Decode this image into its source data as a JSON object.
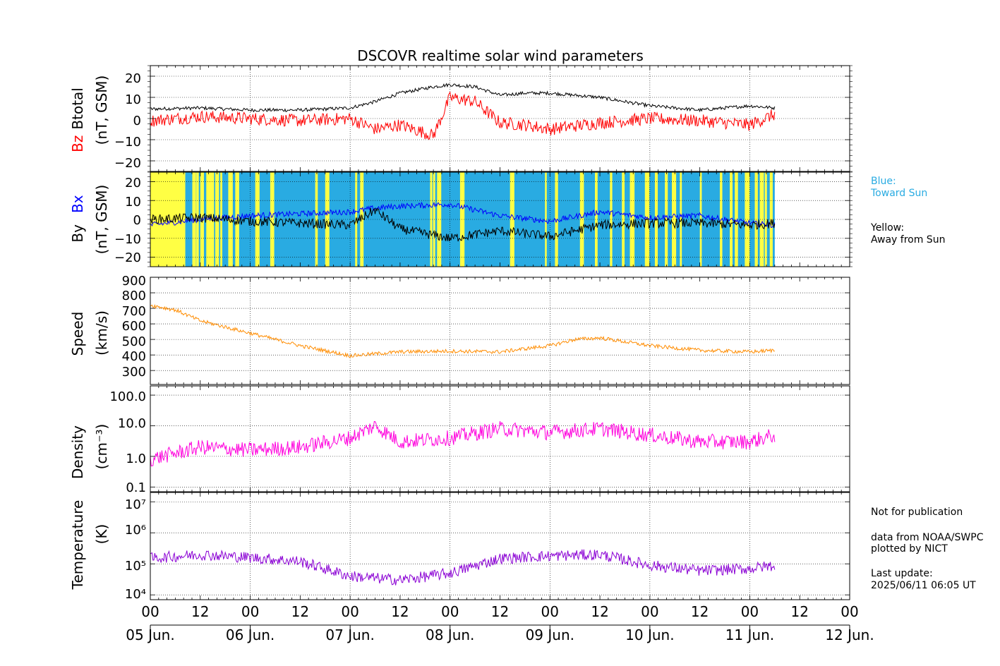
{
  "figure": {
    "title": "DSCOVR realtime solar wind parameters"
  },
  "panels": {
    "mag_total": {
      "label_btotal": "Btotal",
      "label_bz": "Bz",
      "unit": "(nT, GSM)",
      "ticks": [
        "20",
        "10",
        "0",
        "−10",
        "−20"
      ],
      "colors": {
        "btotal": "#000000",
        "bz": "#ff0000"
      }
    },
    "mag_xy": {
      "label_by": "By",
      "label_bx": "Bx",
      "unit": "(nT, GSM)",
      "ticks": [
        "20",
        "10",
        "0",
        "−10",
        "−20"
      ],
      "colors": {
        "by": "#000000",
        "bx": "#0000ff",
        "toward": "#29abe2",
        "away": "#ffff44"
      }
    },
    "speed": {
      "label": "Speed",
      "unit": "(km/s)",
      "ticks": [
        "900",
        "800",
        "700",
        "600",
        "500",
        "400",
        "300"
      ],
      "color": "#ff8c00"
    },
    "density": {
      "label": "Density",
      "unit": "(cm⁻³)",
      "ticks": [
        "100.0",
        "10.0",
        "1.0",
        "0.1"
      ],
      "color": "#ff00dd"
    },
    "temperature": {
      "label": "Temperature",
      "unit": "(K)",
      "ticks": [
        "10⁷",
        "10⁶",
        "10⁵",
        "10⁴"
      ],
      "color": "#8a00d4"
    }
  },
  "x_axis": {
    "hour_labels": [
      "00",
      "12",
      "00",
      "12",
      "00",
      "12",
      "00",
      "12",
      "00",
      "12",
      "00",
      "12",
      "00",
      "12",
      "00"
    ],
    "date_labels": [
      "05 Jun.",
      "06 Jun.",
      "07 Jun.",
      "08 Jun.",
      "09 Jun.",
      "10 Jun.",
      "11 Jun.",
      "12 Jun."
    ]
  },
  "legend": {
    "blue_line1": "Blue:",
    "blue_line2": "Toward Sun",
    "yellow_line1": "Yellow:",
    "yellow_line2": "Away from Sun"
  },
  "notes": {
    "not_for_publication": "Not for publication",
    "source": "data from NOAA/SWPC",
    "plotted": "plotted by NICT",
    "last_update_label": "Last update:",
    "last_update": "2025/06/11 06:05 UT"
  },
  "chart_data": {
    "type": "line",
    "title": "DSCOVR realtime solar wind parameters",
    "x_range_days": [
      "05 Jun. 00",
      "12 Jun. 00"
    ],
    "data_end": "11 Jun. 06",
    "grid": true,
    "series": [
      {
        "name": "Btotal",
        "unit": "nT",
        "panel": "mag_total",
        "x": [
          "05 Jun. 00",
          "05 Jun. 12",
          "06 Jun. 00",
          "06 Jun. 12",
          "07 Jun. 00",
          "07 Jun. 06",
          "07 Jun. 12",
          "07 Jun. 20",
          "08 Jun. 00",
          "08 Jun. 06",
          "08 Jun. 12",
          "08 Jun. 18",
          "09 Jun. 00",
          "09 Jun. 12",
          "10 Jun. 00",
          "10 Jun. 12",
          "11 Jun. 00",
          "11 Jun. 06"
        ],
        "values": [
          4.5,
          5,
          4,
          4,
          5,
          8,
          12,
          15,
          16,
          15,
          11,
          12,
          12,
          10,
          6,
          4,
          6,
          5
        ]
      },
      {
        "name": "Bz",
        "unit": "nT",
        "panel": "mag_total",
        "x": [
          "05 Jun. 00",
          "05 Jun. 12",
          "06 Jun. 00",
          "06 Jun. 12",
          "07 Jun. 00",
          "07 Jun. 06",
          "07 Jun. 12",
          "07 Jun. 20",
          "08 Jun. 00",
          "08 Jun. 06",
          "08 Jun. 12",
          "08 Jun. 18",
          "09 Jun. 00",
          "09 Jun. 12",
          "10 Jun. 00",
          "10 Jun. 12",
          "11 Jun. 00",
          "11 Jun. 06"
        ],
        "values": [
          -1,
          1,
          0,
          -1,
          0,
          -5,
          -3,
          -8,
          10,
          8,
          -2,
          -3,
          -5,
          -2,
          0,
          -1,
          -3,
          2
        ]
      },
      {
        "name": "Bx",
        "unit": "nT",
        "panel": "mag_xy",
        "x": [
          "05 Jun. 00",
          "05 Jun. 12",
          "06 Jun. 00",
          "06 Jun. 12",
          "07 Jun. 00",
          "07 Jun. 06",
          "07 Jun. 12",
          "08 Jun. 00",
          "08 Jun. 12",
          "09 Jun. 00",
          "09 Jun. 12",
          "10 Jun. 00",
          "10 Jun. 12",
          "11 Jun. 00",
          "11 Jun. 06"
        ],
        "values": [
          -3,
          0,
          2,
          3,
          4,
          6,
          7,
          8,
          2,
          -1,
          4,
          1,
          2,
          -2,
          -3
        ]
      },
      {
        "name": "By",
        "unit": "nT",
        "panel": "mag_xy",
        "x": [
          "05 Jun. 00",
          "05 Jun. 12",
          "06 Jun. 00",
          "06 Jun. 12",
          "07 Jun. 00",
          "07 Jun. 06",
          "07 Jun. 12",
          "08 Jun. 00",
          "08 Jun. 12",
          "09 Jun. 00",
          "09 Jun. 12",
          "10 Jun. 00",
          "10 Jun. 12",
          "11 Jun. 00",
          "11 Jun. 06"
        ],
        "values": [
          0,
          1,
          -1,
          -2,
          -3,
          5,
          -5,
          -10,
          -6,
          -9,
          -3,
          -2,
          -2,
          -3,
          -2
        ]
      },
      {
        "name": "Speed",
        "unit": "km/s",
        "panel": "speed",
        "x": [
          "05 Jun. 00",
          "05 Jun. 06",
          "05 Jun. 12",
          "06 Jun. 00",
          "06 Jun. 12",
          "07 Jun. 00",
          "07 Jun. 12",
          "08 Jun. 00",
          "08 Jun. 12",
          "09 Jun. 00",
          "09 Jun. 06",
          "09 Jun. 12",
          "10 Jun. 00",
          "10 Jun. 12",
          "11 Jun. 00",
          "11 Jun. 06"
        ],
        "values": [
          720,
          690,
          620,
          540,
          460,
          395,
          420,
          425,
          420,
          460,
          500,
          510,
          460,
          430,
          420,
          430
        ]
      },
      {
        "name": "Density",
        "unit": "cm-3",
        "panel": "density",
        "x": [
          "05 Jun. 00",
          "05 Jun. 12",
          "06 Jun. 00",
          "06 Jun. 12",
          "07 Jun. 00",
          "07 Jun. 06",
          "07 Jun. 12",
          "08 Jun. 00",
          "08 Jun. 12",
          "09 Jun. 00",
          "09 Jun. 12",
          "10 Jun. 00",
          "10 Jun. 12",
          "11 Jun. 00",
          "11 Jun. 06"
        ],
        "values": [
          0.8,
          2,
          1.6,
          2,
          4,
          10,
          3,
          4,
          8,
          6,
          8,
          5,
          3,
          3,
          5
        ]
      },
      {
        "name": "Temperature",
        "unit": "K",
        "panel": "temperature",
        "x": [
          "05 Jun. 00",
          "05 Jun. 12",
          "06 Jun. 00",
          "06 Jun. 12",
          "07 Jun. 00",
          "07 Jun. 12",
          "08 Jun. 00",
          "08 Jun. 12",
          "09 Jun. 00",
          "09 Jun. 12",
          "10 Jun. 00",
          "10 Jun. 12",
          "11 Jun. 00",
          "11 Jun. 06"
        ],
        "values": [
          150000,
          200000,
          160000,
          120000,
          40000,
          30000,
          50000,
          150000,
          180000,
          200000,
          90000,
          60000,
          70000,
          90000
        ]
      }
    ]
  }
}
